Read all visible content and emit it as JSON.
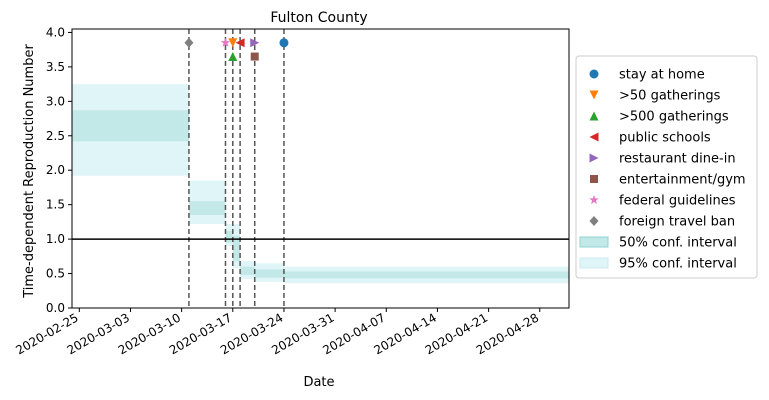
{
  "chart_data": {
    "type": "step-band",
    "title": "Fulton County",
    "xlabel": "Date",
    "ylabel": "Time-dependent Reproduction Number",
    "x_ticks": [
      "2020-02-25",
      "2020-03-03",
      "2020-03-10",
      "2020-03-17",
      "2020-03-24",
      "2020-03-31",
      "2020-04-07",
      "2020-04-14",
      "2020-04-21",
      "2020-04-28"
    ],
    "xlim": [
      "2020-02-24",
      "2020-05-02"
    ],
    "y_ticks": [
      "0.0",
      "0.5",
      "1.0",
      "1.5",
      "2.0",
      "2.5",
      "3.0",
      "3.5",
      "4.0"
    ],
    "ylim": [
      0,
      4.05
    ],
    "reference_line_y": 1.0,
    "grid": false,
    "legend_position": "outside-right",
    "colors": {
      "band50": "#c3e8e8",
      "band95": "#e0f5f8",
      "reference": "#000000",
      "intervention_line": "#555555"
    },
    "segments": [
      {
        "start": "2020-02-24",
        "end": "2020-03-11",
        "ci95": [
          1.92,
          3.25
        ],
        "ci50": [
          2.42,
          2.87
        ]
      },
      {
        "start": "2020-03-11",
        "end": "2020-03-16",
        "ci95": [
          1.22,
          1.85
        ],
        "ci50": [
          1.35,
          1.55
        ]
      },
      {
        "start": "2020-03-16",
        "end": "2020-03-17",
        "ci95": [
          0.9,
          1.22
        ],
        "ci50": [
          0.95,
          1.12
        ]
      },
      {
        "start": "2020-03-17",
        "end": "2020-03-18",
        "ci95": [
          0.58,
          1.22
        ],
        "ci50": [
          0.68,
          1.05
        ]
      },
      {
        "start": "2020-03-18",
        "end": "2020-03-20",
        "ci95": [
          0.42,
          0.68
        ],
        "ci50": [
          0.48,
          0.6
        ]
      },
      {
        "start": "2020-03-20",
        "end": "2020-03-24",
        "ci95": [
          0.38,
          0.65
        ],
        "ci50": [
          0.44,
          0.56
        ]
      },
      {
        "start": "2020-03-24",
        "end": "2020-05-02",
        "ci95": [
          0.36,
          0.6
        ],
        "ci50": [
          0.43,
          0.53
        ]
      }
    ],
    "interventions": [
      {
        "name": "stay at home",
        "date": "2020-03-24",
        "y": 3.85,
        "marker": "circle",
        "color": "#1f77b4"
      },
      {
        "name": ">50 gatherings",
        "date": "2020-03-17",
        "y": 3.85,
        "marker": "triangle-down",
        "color": "#ff7f0e"
      },
      {
        "name": ">500 gatherings",
        "date": "2020-03-17",
        "y": 3.65,
        "marker": "triangle-up",
        "color": "#2ca02c"
      },
      {
        "name": "public schools",
        "date": "2020-03-18",
        "y": 3.85,
        "marker": "triangle-left",
        "color": "#d62728"
      },
      {
        "name": "restaurant dine-in",
        "date": "2020-03-20",
        "y": 3.85,
        "marker": "triangle-right",
        "color": "#9467bd"
      },
      {
        "name": "entertainment/gym",
        "date": "2020-03-20",
        "y": 3.65,
        "marker": "square",
        "color": "#8c564b"
      },
      {
        "name": "federal guidelines",
        "date": "2020-03-16",
        "y": 3.85,
        "marker": "star",
        "color": "#e377c2"
      },
      {
        "name": "foreign travel ban",
        "date": "2020-03-11",
        "y": 3.85,
        "marker": "diamond",
        "color": "#7f7f7f"
      }
    ],
    "legend": {
      "interval_labels": [
        "50% conf. interval",
        "95% conf. interval"
      ]
    }
  }
}
